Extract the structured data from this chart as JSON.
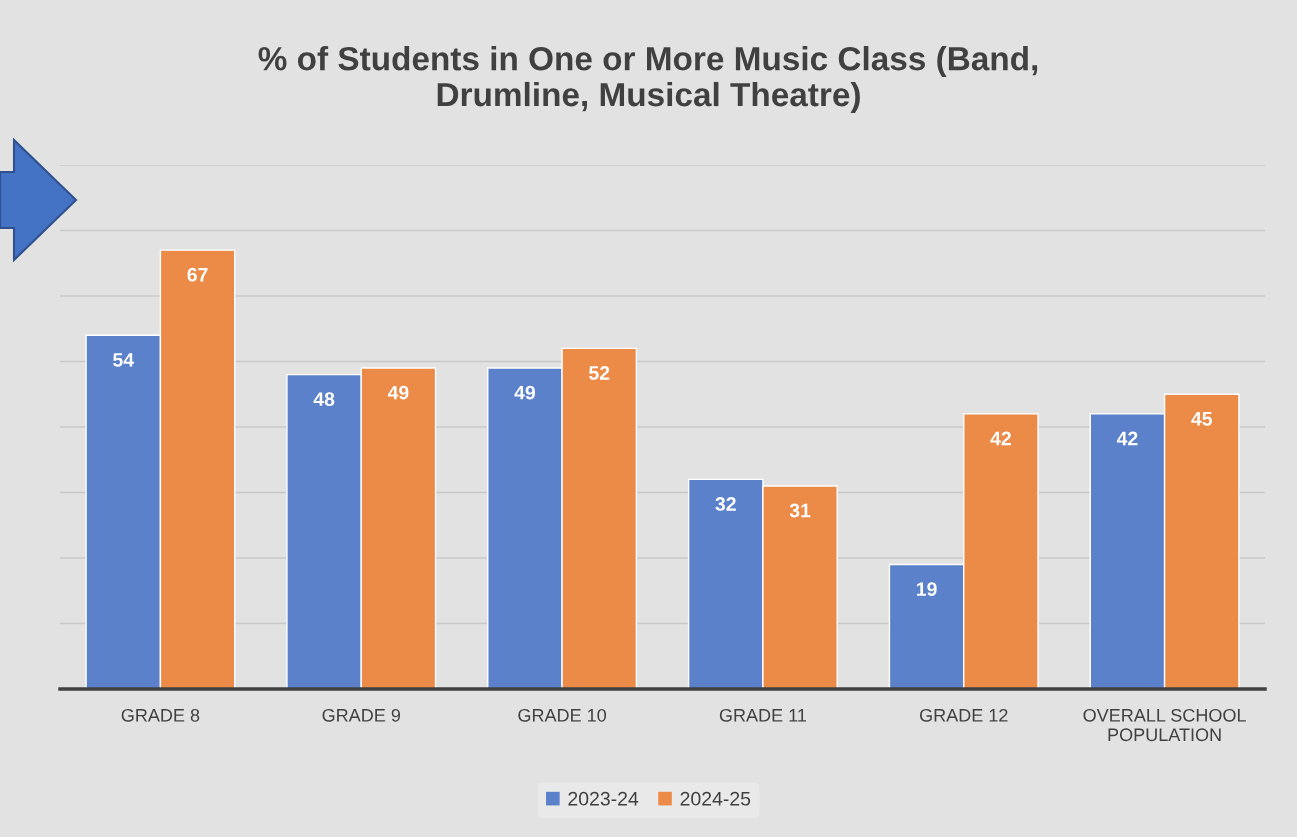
{
  "chart_data": {
    "type": "bar",
    "title": "% of Students in One or More Music Class (Band,\nDrumline, Musical Theatre)",
    "categories": [
      "GRADE 8",
      "GRADE 9",
      "GRADE 10",
      "GRADE 11",
      "GRADE 12",
      "OVERALL SCHOOL\nPOPULATION"
    ],
    "series": [
      {
        "name": "2023-24",
        "color": "#5a81ca",
        "values": [
          54,
          48,
          49,
          32,
          19,
          42
        ]
      },
      {
        "name": "2024-25",
        "color": "#ec8b48",
        "values": [
          67,
          49,
          52,
          31,
          42,
          45
        ]
      }
    ],
    "ylim": [
      0,
      80
    ],
    "yticks": [
      {
        "value": 0,
        "label": null
      },
      {
        "value": 10,
        "label": null
      },
      {
        "value": 20,
        "label": null
      },
      {
        "value": 30,
        "label": null
      },
      {
        "value": 40,
        "label": null
      },
      {
        "value": 50,
        "label": null
      },
      {
        "value": 60,
        "label": null
      },
      {
        "value": 70,
        "label": null
      },
      {
        "value": 80,
        "label": null
      }
    ],
    "tick_labels": "x",
    "grid": "y",
    "legend": "bottom",
    "data_labels": true
  }
}
